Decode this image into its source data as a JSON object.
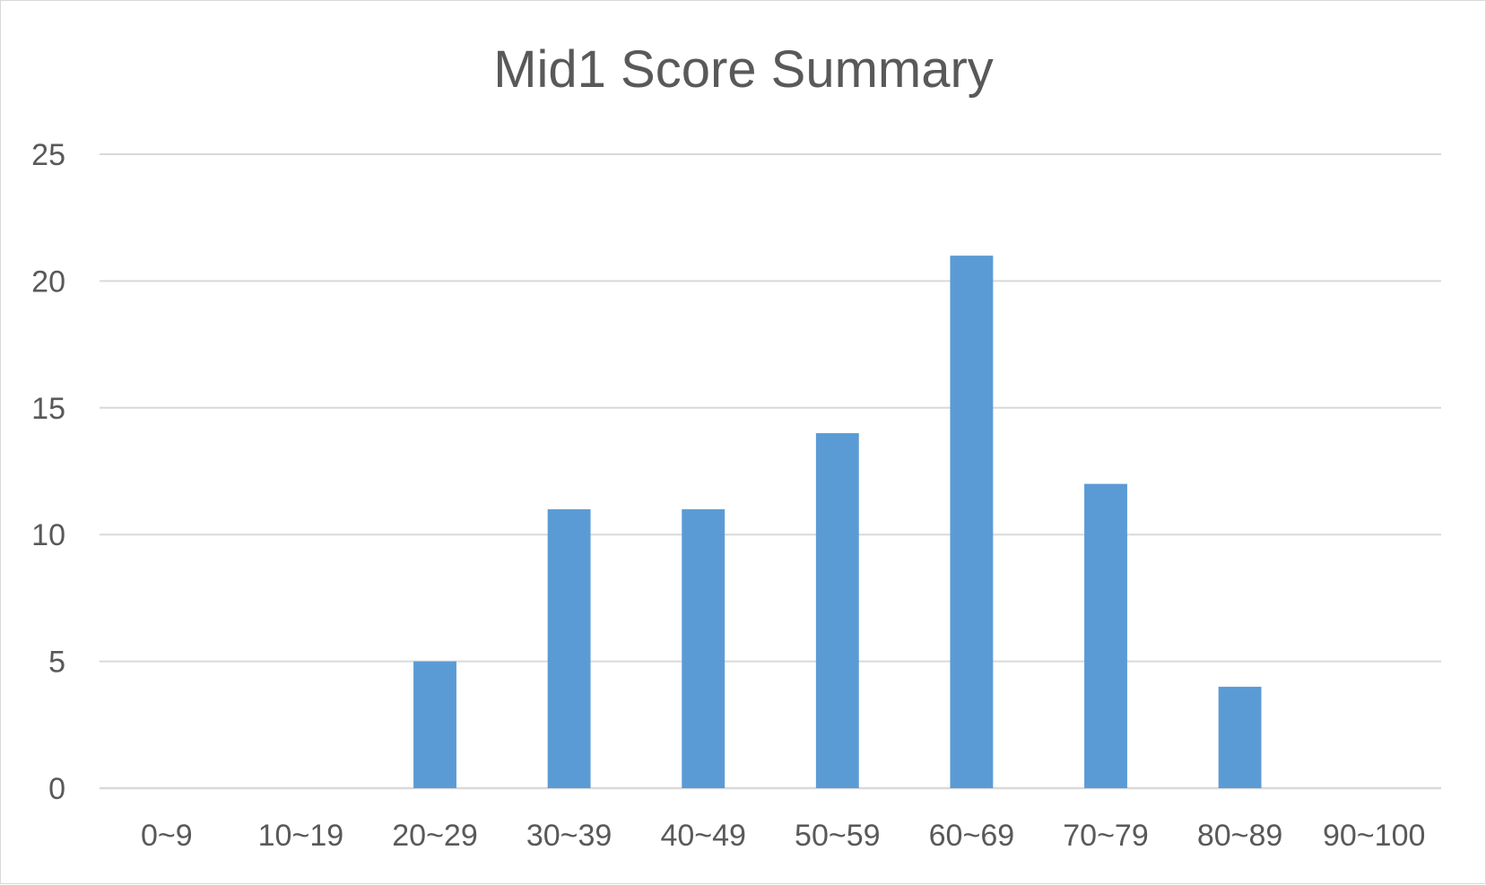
{
  "chart_data": {
    "type": "bar",
    "title": "Mid1 Score Summary",
    "xlabel": "",
    "ylabel": "",
    "categories": [
      "0~9",
      "10~19",
      "20~29",
      "30~39",
      "40~49",
      "50~59",
      "60~69",
      "70~79",
      "80~89",
      "90~100"
    ],
    "values": [
      0,
      0,
      5,
      11,
      11,
      14,
      21,
      12,
      4,
      0
    ],
    "ylim": [
      0,
      25
    ],
    "yticks": [
      0,
      5,
      10,
      15,
      20,
      25
    ],
    "grid": true,
    "legend": "none",
    "bar_color": "#5b9bd5",
    "grid_color": "#d9d9d9",
    "text_color": "#595959"
  }
}
